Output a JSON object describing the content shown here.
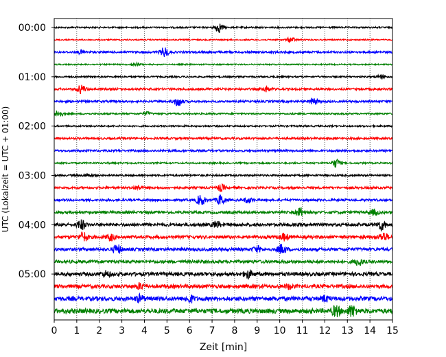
{
  "chart_data": {
    "type": "line",
    "title": "",
    "xlabel": "Zeit  [min]",
    "ylabel": "UTC (Lokalzeit = UTC + 01:00)",
    "xlim": [
      0,
      15
    ],
    "x_ticks": [
      "0",
      "1",
      "2",
      "3",
      "4",
      "5",
      "6",
      "7",
      "8",
      "9",
      "10",
      "11",
      "12",
      "13",
      "14",
      "15"
    ],
    "y_ticks": [
      {
        "label": "00:00",
        "trace": 0
      },
      {
        "label": "01:00",
        "trace": 4
      },
      {
        "label": "02:00",
        "trace": 8
      },
      {
        "label": "03:00",
        "trace": 12
      },
      {
        "label": "04:00",
        "trace": 16
      },
      {
        "label": "05:00",
        "trace": 20
      }
    ],
    "grid": {
      "vertical": true,
      "style": "dotted"
    },
    "trace_colors": [
      "#000000",
      "#ff0000",
      "#0000ff",
      "#008000"
    ],
    "traces": [
      {
        "start": "00:00",
        "amplitude": 0.15,
        "events": [
          {
            "t": 7.3,
            "a": 0.9
          }
        ]
      },
      {
        "start": "00:15",
        "amplitude": 0.12,
        "events": [
          {
            "t": 10.5,
            "a": 0.5
          }
        ]
      },
      {
        "start": "00:30",
        "amplitude": 0.2,
        "events": [
          {
            "t": 1.2,
            "a": 0.3
          },
          {
            "t": 4.9,
            "a": 0.9
          }
        ]
      },
      {
        "start": "00:45",
        "amplitude": 0.12,
        "events": [
          {
            "t": 3.6,
            "a": 0.35
          }
        ]
      },
      {
        "start": "01:00",
        "amplitude": 0.15,
        "events": [
          {
            "t": 14.5,
            "a": 0.4
          }
        ]
      },
      {
        "start": "01:15",
        "amplitude": 0.2,
        "events": [
          {
            "t": 1.2,
            "a": 0.8
          },
          {
            "t": 9.4,
            "a": 0.5
          }
        ]
      },
      {
        "start": "01:30",
        "amplitude": 0.2,
        "events": [
          {
            "t": 5.5,
            "a": 0.9
          },
          {
            "t": 11.5,
            "a": 0.6
          }
        ]
      },
      {
        "start": "01:45",
        "amplitude": 0.15,
        "events": [
          {
            "t": 0.2,
            "a": 0.6
          },
          {
            "t": 4.1,
            "a": 0.3
          }
        ]
      },
      {
        "start": "02:00",
        "amplitude": 0.15,
        "events": []
      },
      {
        "start": "02:15",
        "amplitude": 0.2,
        "events": []
      },
      {
        "start": "02:30",
        "amplitude": 0.2,
        "events": []
      },
      {
        "start": "02:45",
        "amplitude": 0.15,
        "events": [
          {
            "t": 12.5,
            "a": 0.8
          }
        ]
      },
      {
        "start": "03:00",
        "amplitude": 0.18,
        "events": [
          {
            "t": 1.5,
            "a": 0.3
          }
        ]
      },
      {
        "start": "03:15",
        "amplitude": 0.22,
        "events": [
          {
            "t": 3.7,
            "a": 0.4
          },
          {
            "t": 7.4,
            "a": 0.6
          }
        ]
      },
      {
        "start": "03:30",
        "amplitude": 0.22,
        "events": [
          {
            "t": 6.5,
            "a": 1.0
          },
          {
            "t": 7.4,
            "a": 1.0
          },
          {
            "t": 8.6,
            "a": 0.5
          }
        ]
      },
      {
        "start": "03:45",
        "amplitude": 0.25,
        "events": [
          {
            "t": 10.9,
            "a": 0.8
          },
          {
            "t": 14.2,
            "a": 0.5
          }
        ]
      },
      {
        "start": "04:00",
        "amplitude": 0.3,
        "events": [
          {
            "t": 1.2,
            "a": 0.9
          },
          {
            "t": 7.2,
            "a": 0.6
          },
          {
            "t": 14.5,
            "a": 0.9
          }
        ]
      },
      {
        "start": "04:15",
        "amplitude": 0.3,
        "events": [
          {
            "t": 1.3,
            "a": 0.9
          },
          {
            "t": 2.5,
            "a": 0.6
          },
          {
            "t": 10.2,
            "a": 0.6
          },
          {
            "t": 14.6,
            "a": 0.8
          }
        ]
      },
      {
        "start": "04:30",
        "amplitude": 0.3,
        "events": [
          {
            "t": 2.8,
            "a": 0.8
          },
          {
            "t": 9.0,
            "a": 0.5
          },
          {
            "t": 10.1,
            "a": 0.9
          }
        ]
      },
      {
        "start": "04:45",
        "amplitude": 0.3,
        "events": [
          {
            "t": 13.5,
            "a": 0.6
          }
        ]
      },
      {
        "start": "05:00",
        "amplitude": 0.35,
        "events": [
          {
            "t": 2.3,
            "a": 0.5
          },
          {
            "t": 8.6,
            "a": 0.7
          }
        ]
      },
      {
        "start": "05:15",
        "amplitude": 0.35,
        "events": [
          {
            "t": 3.8,
            "a": 0.5
          },
          {
            "t": 10.4,
            "a": 0.4
          }
        ]
      },
      {
        "start": "05:30",
        "amplitude": 0.4,
        "events": [
          {
            "t": 3.8,
            "a": 0.6
          },
          {
            "t": 6.0,
            "a": 0.7
          },
          {
            "t": 12.0,
            "a": 0.5
          }
        ]
      },
      {
        "start": "05:45",
        "amplitude": 0.45,
        "events": [
          {
            "t": 12.5,
            "a": 0.9
          },
          {
            "t": 13.2,
            "a": 1.0
          }
        ]
      }
    ]
  }
}
